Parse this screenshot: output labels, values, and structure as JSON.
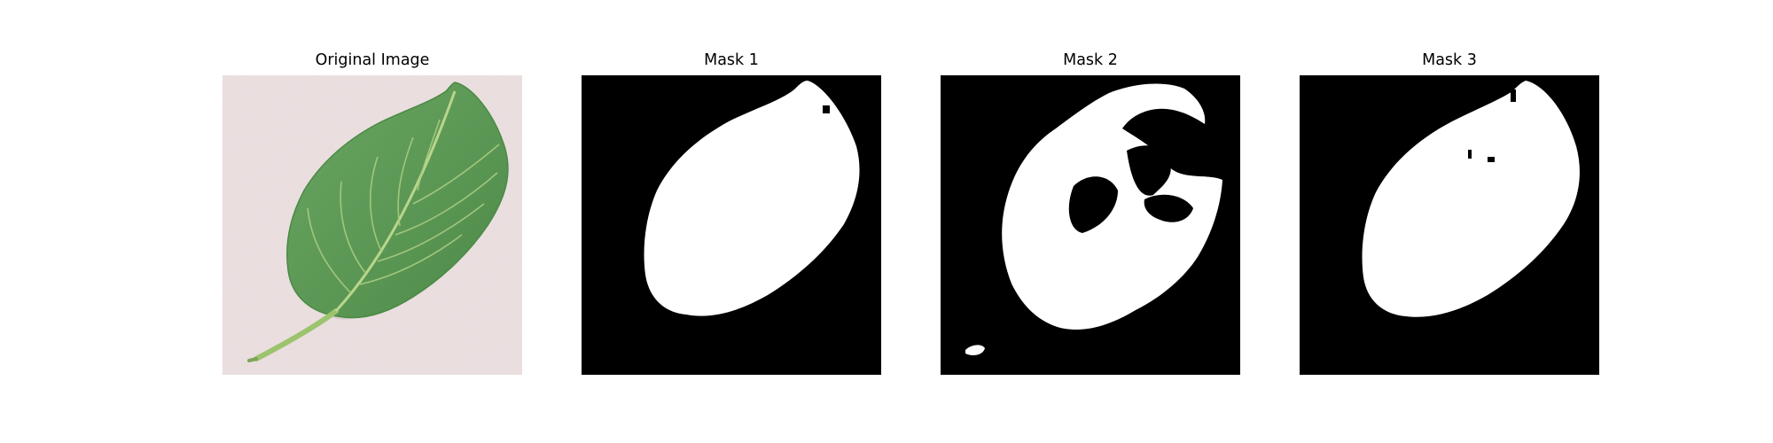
{
  "panels": [
    {
      "title": "Original Image",
      "kind": "photo",
      "subject": "green leaf on light pink background"
    },
    {
      "title": "Mask 1",
      "kind": "binary-mask"
    },
    {
      "title": "Mask 2",
      "kind": "binary-mask"
    },
    {
      "title": "Mask 3",
      "kind": "binary-mask"
    }
  ],
  "colors": {
    "background": "#ffffff",
    "photo_background": "#ece0e1",
    "leaf": "#5f9a57",
    "leaf_dark": "#3f7a3a",
    "vein": "#b5d48a",
    "mask_bg": "#000000",
    "mask_fg": "#ffffff"
  }
}
